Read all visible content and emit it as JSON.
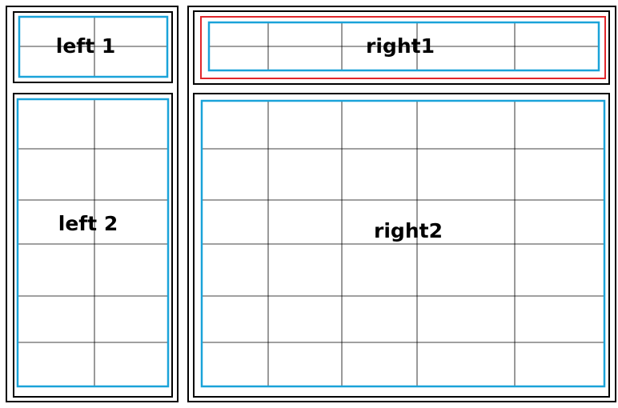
{
  "panels": [
    {
      "label": "left 1"
    },
    {
      "label": "left 2"
    },
    {
      "label": "right1"
    },
    {
      "label": "right2"
    }
  ]
}
